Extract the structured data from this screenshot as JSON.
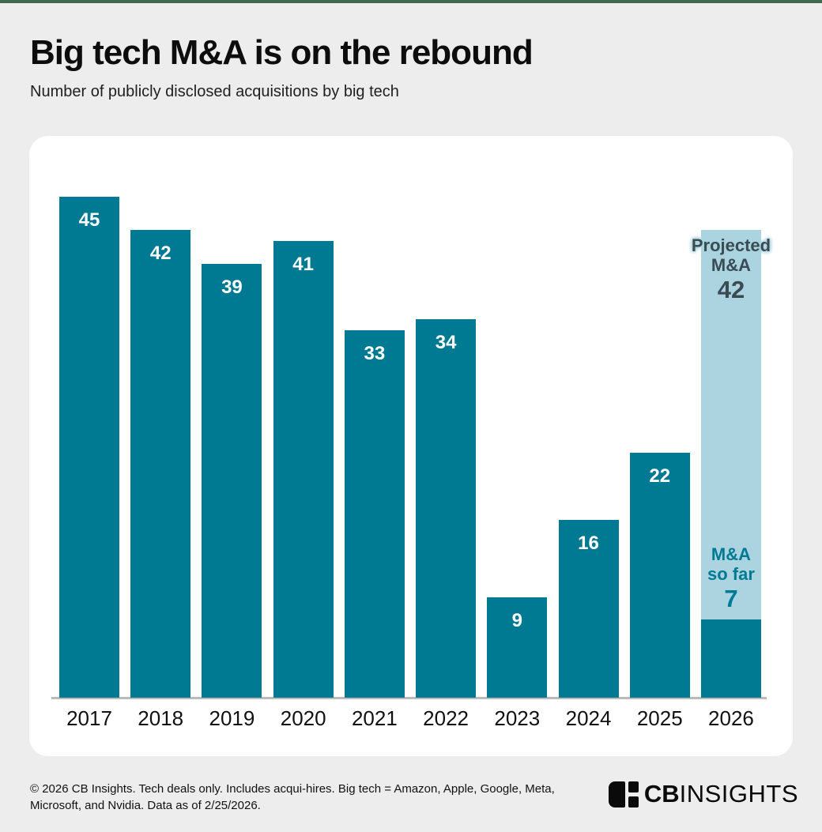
{
  "header": {
    "title": "Big tech M&A is on the rebound",
    "subtitle": "Number of publicly disclosed acquisitions by big tech"
  },
  "chart_data": {
    "type": "bar",
    "title": "Big tech M&A is on the rebound",
    "subtitle": "Number of publicly disclosed acquisitions by big tech",
    "xlabel": "",
    "ylabel": "",
    "ylim": [
      0,
      45
    ],
    "grid": false,
    "legend": "none",
    "categories": [
      "2017",
      "2018",
      "2019",
      "2020",
      "2021",
      "2022",
      "2023",
      "2024",
      "2025",
      "2026"
    ],
    "values": [
      45,
      42,
      39,
      41,
      33,
      34,
      9,
      16,
      22,
      7
    ],
    "projected": {
      "category": "2026",
      "total": 42,
      "actual": 7,
      "label_lines": [
        "Projected",
        "M&A"
      ],
      "label_value": "42",
      "actual_label_lines": [
        "M&A",
        "so far"
      ],
      "actual_label_value": "7"
    },
    "colors": {
      "bar": "#007A93",
      "projected_bar": "#ABD4E0",
      "projected_label": "#3B4B54",
      "value_label": "#FFFFFF"
    }
  },
  "footer": {
    "note": "© 2026 CB Insights. Tech deals only. Includes acqui-hires. Big tech = Amazon, Apple, Google, Meta, Microsoft, and Nvidia. Data as of 2/25/2026.",
    "logo": {
      "bold": "CB",
      "light": "INSIGHTS"
    }
  },
  "theme": {
    "accent_green": "#3E6A4B",
    "page_bg": "#EDEDED",
    "card_bg": "#FFFFFF",
    "axis_line": "#BBBBBB"
  }
}
